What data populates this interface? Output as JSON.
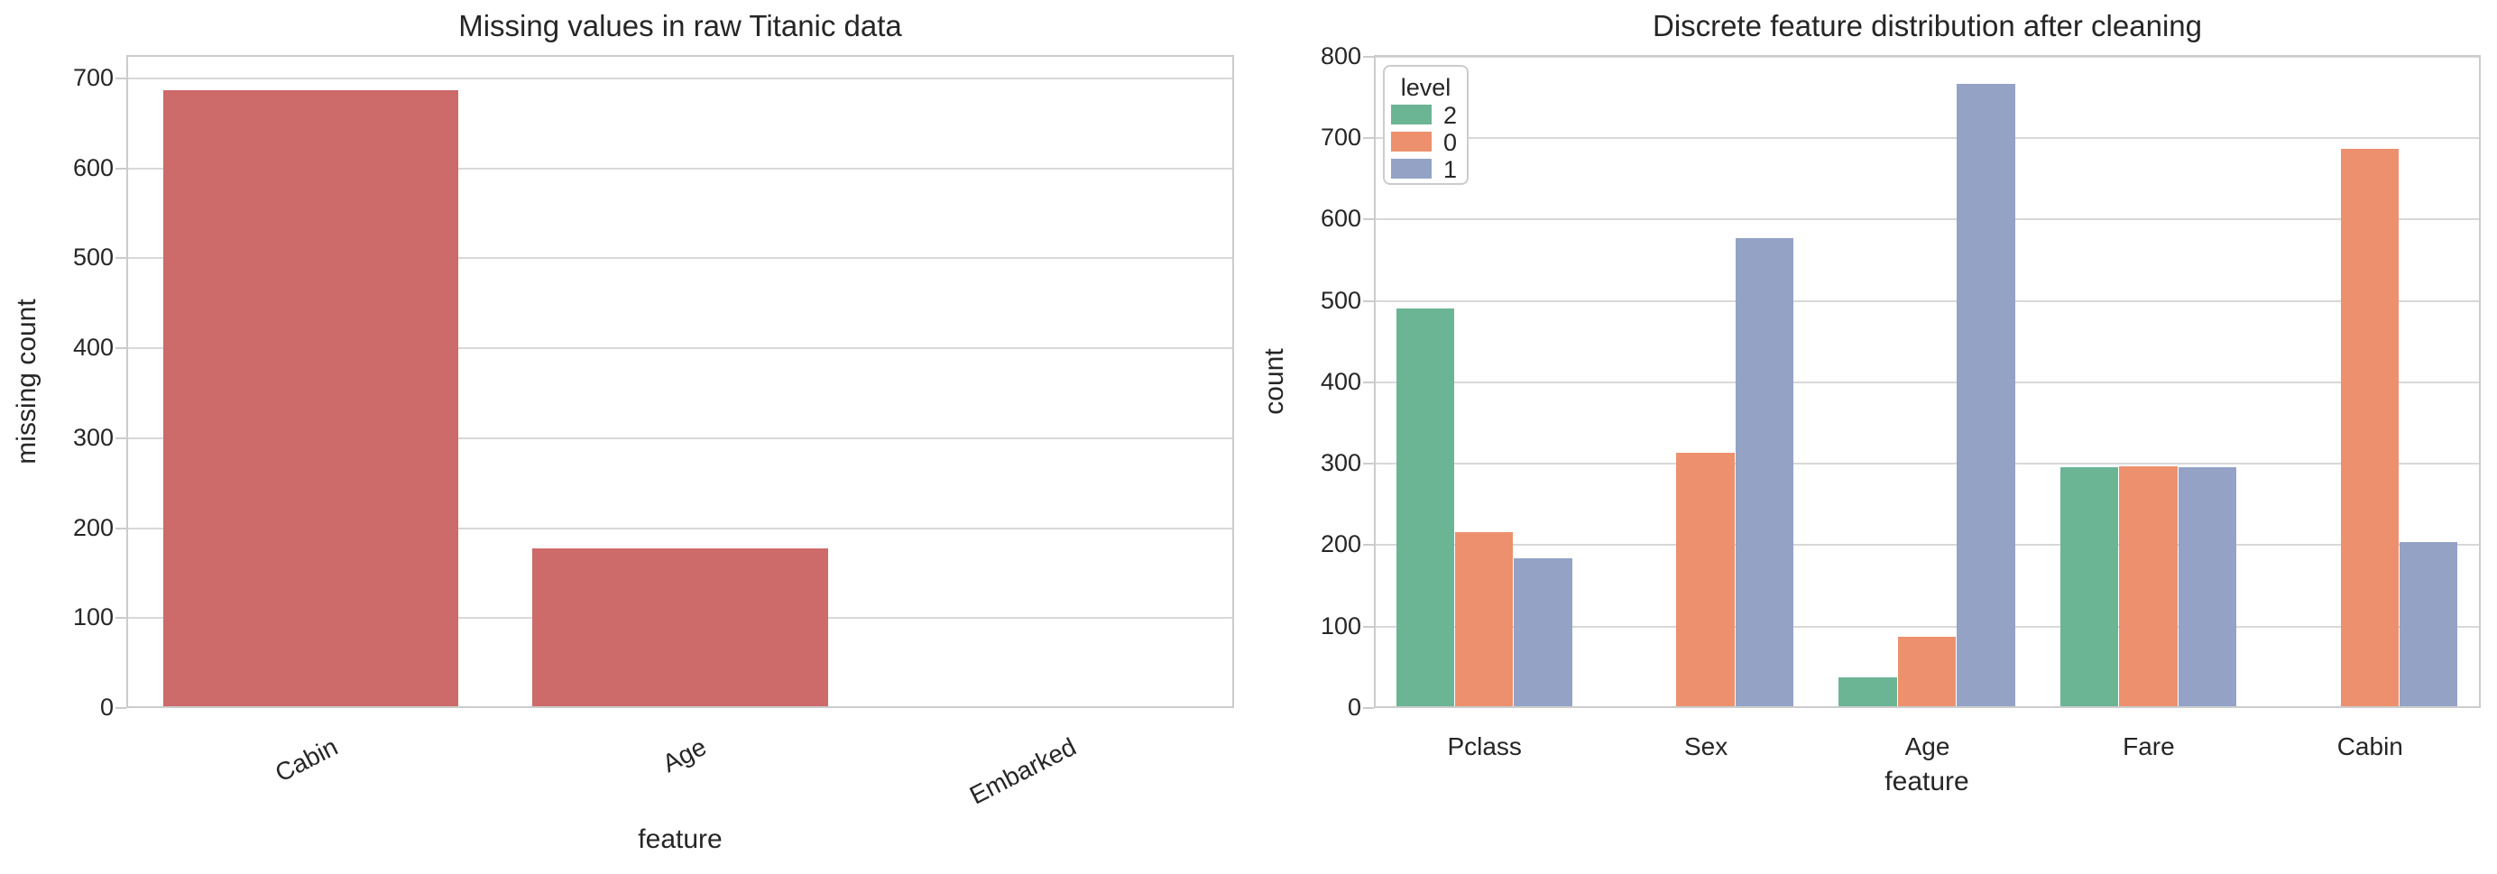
{
  "figure": {
    "background": "#ffffff",
    "grid_color": "#d8d8d8",
    "spine_color": "#cccccc",
    "text_color": "#262626"
  },
  "chart_data": [
    {
      "type": "bar",
      "title": "Missing values in raw Titanic data",
      "xlabel": "feature",
      "ylabel": "missing count",
      "categories": [
        "Cabin",
        "Age",
        "Embarked"
      ],
      "values": [
        687,
        177,
        2
      ],
      "bar_color": "#cd6a6a",
      "ylim": [
        0,
        726
      ],
      "yticks": [
        0,
        100,
        200,
        300,
        400,
        500,
        600,
        700
      ],
      "xtick_rotation": 27,
      "grid": "horizontal",
      "legend": null
    },
    {
      "type": "bar",
      "title": "Discrete feature distribution after cleaning",
      "xlabel": "feature",
      "ylabel": "count",
      "categories": [
        "Pclass",
        "Sex",
        "Age",
        "Fare",
        "Cabin"
      ],
      "series": [
        {
          "name": "2",
          "color": "#6bb595",
          "values": [
            491,
            null,
            38,
            296,
            null
          ]
        },
        {
          "name": "0",
          "color": "#ed906e",
          "values": [
            216,
            314,
            87,
            297,
            687
          ]
        },
        {
          "name": "1",
          "color": "#94a2c6",
          "values": [
            184,
            577,
            766,
            296,
            204
          ]
        }
      ],
      "ylim": [
        0,
        802
      ],
      "yticks": [
        0,
        100,
        200,
        300,
        400,
        500,
        600,
        700,
        800
      ],
      "xtick_rotation": 0,
      "grid": "horizontal",
      "legend": {
        "title": "level",
        "entries": [
          "2",
          "0",
          "1"
        ],
        "position": "upper left"
      }
    }
  ]
}
